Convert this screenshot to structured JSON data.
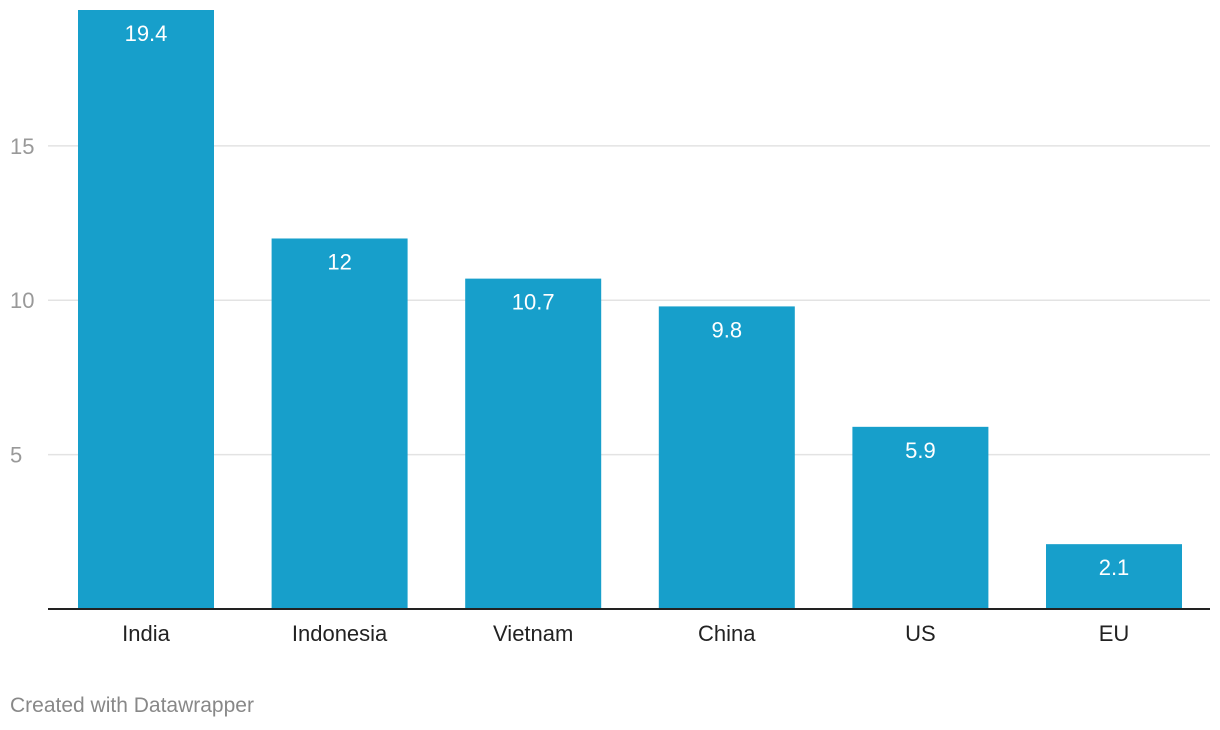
{
  "chart_data": {
    "type": "bar",
    "categories": [
      "India",
      "Indonesia",
      "Vietnam",
      "China",
      "US",
      "EU"
    ],
    "values": [
      19.4,
      12,
      10.7,
      9.8,
      5.9,
      2.1
    ],
    "value_labels": [
      "19.4",
      "12",
      "10.7",
      "9.8",
      "5.9",
      "2.1"
    ],
    "yticks": [
      5,
      10,
      15
    ],
    "ylim": [
      0,
      19.4
    ],
    "grid": true,
    "title": "",
    "xlabel": "",
    "ylabel": "",
    "bar_color": "#179fcb"
  },
  "footer": {
    "credit": "Created with Datawrapper"
  }
}
